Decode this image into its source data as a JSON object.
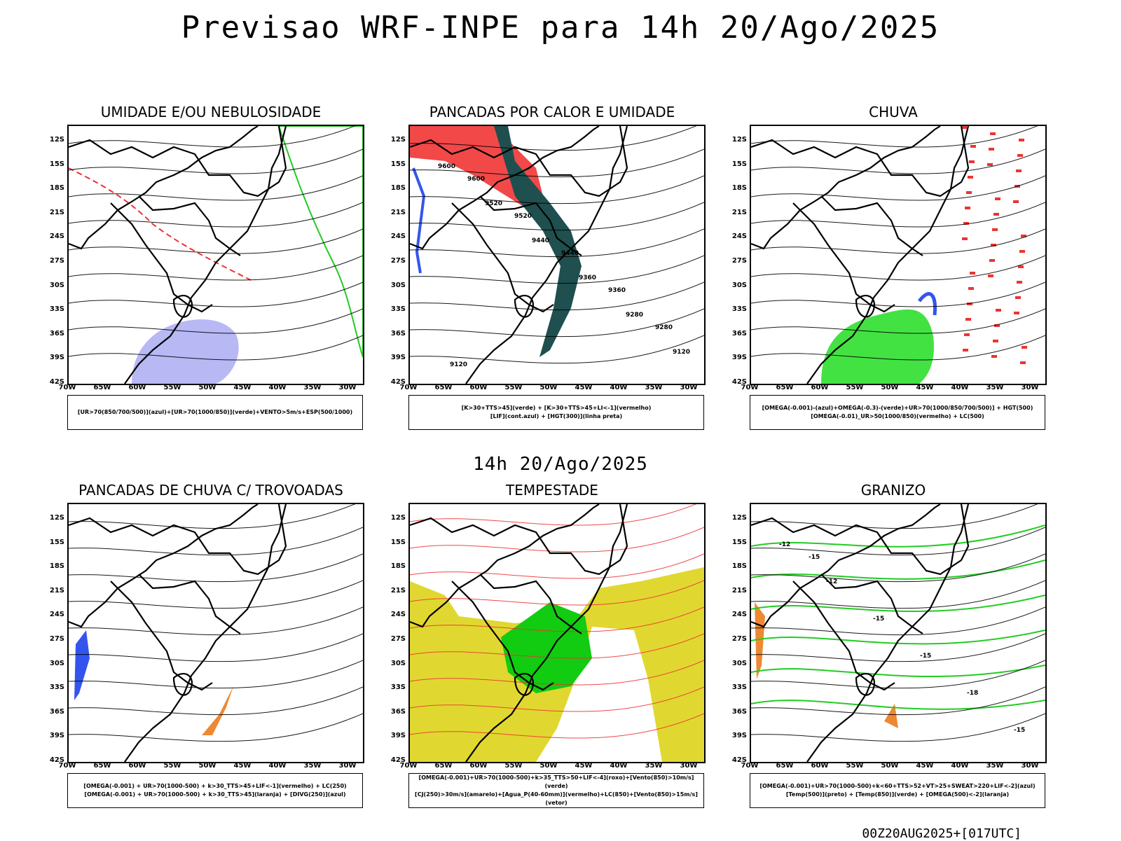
{
  "header": {
    "title": "Previsao WRF-INPE  para 14h 20/Ago/2025",
    "mid_title": "14h 20/Ago/2025",
    "footer": "00Z20AUG2025+[017UTC]"
  },
  "axes": {
    "lat_labels": [
      "12S",
      "15S",
      "18S",
      "21S",
      "24S",
      "27S",
      "30S",
      "33S",
      "36S",
      "39S",
      "42S"
    ],
    "lon_labels": [
      "70W",
      "65W",
      "60W",
      "55W",
      "50W",
      "45W",
      "40W",
      "35W",
      "30W"
    ]
  },
  "panels": [
    {
      "title": "UMIDADE E/OU NEBULOSIDADE",
      "legend": [
        "[UR>70(850/700/500)](azul)+[UR>70(1000/850)](verde)+VENTO>5m/s+ESP(500/1000)"
      ],
      "colors": {
        "moist_mid": "#8888ee",
        "moist_low": "#22cc22",
        "contour": "#ee3333"
      }
    },
    {
      "title": "PANCADAS POR CALOR E UMIDADE",
      "legend": [
        "[K>30+TTS>45](verde) + [K>30+TTS>45+LI<-1](vermelho)",
        "[LIF](cont.azul) + [HGT(300)](linha preta)"
      ],
      "colors": {
        "red": "#f24848",
        "green": "#1f4f4f",
        "blue": "#3355ee"
      },
      "contour_labels": [
        "9600",
        "9520",
        "9440",
        "9360",
        "9280",
        "9120",
        "9600",
        "9520",
        "9440",
        "9360",
        "9280",
        "9120"
      ]
    },
    {
      "title": "CHUVA",
      "legend": [
        "[OMEGA(-0.001)-(azul)+OMEGA(-0.3)-(verde)+UR>70(1000/850/700/500)] + HGT(500)",
        "[OMEGA(-0.01)_UR>50(1000/850)(vermelho) + LC(500)"
      ],
      "colors": {
        "red": "#ee3333",
        "green": "#22dd22",
        "blue": "#3355ee"
      }
    },
    {
      "title": "PANCADAS DE CHUVA C/ TROVOADAS",
      "legend": [
        "[OMEGA(-0.001) + UR>70(1000-500) + k>30_TTS>45+LIF<-1](vermelho) + LC(250)",
        "[OMEGA(-0.001) + UR>70(1000-500) + k>30_TTS>45](laranja) + [DIVG(250)](azul)"
      ],
      "colors": {
        "orange": "#ee8833",
        "blue": "#3355ee"
      }
    },
    {
      "title": "TEMPESTADE",
      "legend": [
        "[OMEGA(-0.001)+UR>70(1000-500)+k>35_TTS>50+LIF<-4](roxo)+[Vento(850)>10m/s](verde)",
        "[CJ(250)>30m/s](amarelo)+[Agua_P(40-60mm)](vermelho)+LC(850)+[Vento(850)>15m/s](vetor)"
      ],
      "colors": {
        "yellow": "#e0d830",
        "green": "#11cc11",
        "red": "#ee3333"
      }
    },
    {
      "title": "GRANIZO",
      "legend": [
        "[OMEGA(-0.001)+UR>70(1000-500)+k<60+TTS>52+VT>25+SWEAT>220+LIF<-2](azul)",
        "[Temp(500)](preto) + [Temp(850)](verde) + [OMEGA(500)<-2](laranja)"
      ],
      "colors": {
        "green": "#22cc22",
        "orange": "#ee8833"
      },
      "contour_labels": [
        "-12",
        "-12",
        "-15",
        "-15",
        "-18",
        "-15",
        "-15"
      ]
    }
  ]
}
